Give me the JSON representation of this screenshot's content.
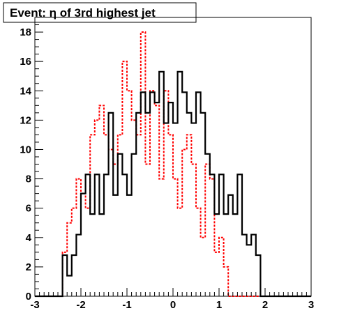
{
  "chart_data": {
    "type": "histogram",
    "title": "Event: η of 3rd highest jet",
    "xlabel": "",
    "ylabel": "",
    "xlim": [
      -3,
      3
    ],
    "ylim": [
      0,
      19
    ],
    "x_ticks": [
      "-3",
      "-2",
      "-1",
      "0",
      "1",
      "2",
      "3"
    ],
    "y_ticks": [
      "0",
      "2",
      "4",
      "6",
      "8",
      "10",
      "12",
      "14",
      "16",
      "18"
    ],
    "grid": false,
    "legend": "none",
    "bin_edges": [
      -3.0,
      -2.9,
      -2.8,
      -2.7,
      -2.6,
      -2.5,
      -2.4,
      -2.3,
      -2.2,
      -2.1,
      -2.0,
      -1.9,
      -1.8,
      -1.7,
      -1.6,
      -1.5,
      -1.4,
      -1.3,
      -1.2,
      -1.1,
      -1.0,
      -0.9,
      -0.8,
      -0.7,
      -0.6,
      -0.5,
      -0.4,
      -0.3,
      -0.2,
      -0.1,
      0.0,
      0.1,
      0.2,
      0.3,
      0.4,
      0.5,
      0.6,
      0.7,
      0.8,
      0.9,
      1.0,
      1.1,
      1.2,
      1.3,
      1.4,
      1.5,
      1.6,
      1.7,
      1.8,
      1.9,
      2.0,
      2.1,
      2.2,
      2.3,
      2.4,
      2.5,
      2.6,
      2.7,
      2.8,
      2.9,
      3.0
    ],
    "series": [
      {
        "style": "solid",
        "color": "#000000",
        "values": [
          0,
          0,
          0,
          0,
          0,
          0,
          2.8,
          1.4,
          2.8,
          4.2,
          7.0,
          8.3,
          5.6,
          8.3,
          5.6,
          8.3,
          12.5,
          6.9,
          9.7,
          8.3,
          6.9,
          9.7,
          12.5,
          13.9,
          12.5,
          13.9,
          13.2,
          15.3,
          11.8,
          13.2,
          11.8,
          15.3,
          13.9,
          12.5,
          11.8,
          13.9,
          12.5,
          9.7,
          8.3,
          5.6,
          8.3,
          5.6,
          6.9,
          5.6,
          8.3,
          4.2,
          3.5,
          4.2,
          2.8,
          0,
          0,
          0,
          0,
          0,
          0,
          0,
          0,
          0,
          0,
          0
        ]
      },
      {
        "style": "dashed",
        "color": "#ff0000",
        "values": [
          0,
          0,
          0,
          0,
          0,
          0,
          3.0,
          5.0,
          6.0,
          8.0,
          7.0,
          6.0,
          11.0,
          12.0,
          13.0,
          11.0,
          10.0,
          9.0,
          11.0,
          16.0,
          14.0,
          12.0,
          11.0,
          18.0,
          9.0,
          14.0,
          13.0,
          8.0,
          14.0,
          11.0,
          8.0,
          6.0,
          10.0,
          11.0,
          9.0,
          6.0,
          4.0,
          9.0,
          8.0,
          3.0,
          4.0,
          2.0,
          0,
          0,
          0,
          0,
          0,
          0,
          0,
          0,
          0,
          0,
          0,
          0,
          0,
          0,
          0,
          0,
          0,
          0
        ]
      }
    ]
  }
}
